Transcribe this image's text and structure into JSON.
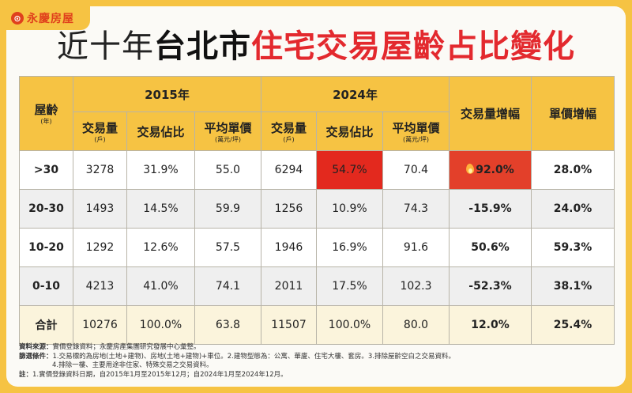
{
  "brand": {
    "logo_char": "⊙",
    "name": "永慶房屋"
  },
  "title": {
    "part1": "近十年",
    "part2": "台北市",
    "part3": "住宅交易屋齡占比變化"
  },
  "table": {
    "corner": {
      "label": "屋齡",
      "unit": "(年)"
    },
    "year_2015": "2015年",
    "year_2024": "2024年",
    "growth_volume": "交易量增幅",
    "growth_price": "單價增幅",
    "sub": {
      "volume": "交易量",
      "volume_unit": "(戶)",
      "share": "交易佔比",
      "price": "平均單價",
      "price_unit": "(萬元/坪)"
    },
    "rows": [
      {
        "age": ">30",
        "v15": "3278",
        "s15": "31.9%",
        "p15": "55.0",
        "v24": "6294",
        "s24": "54.7%",
        "p24": "70.4",
        "gv": "92.0%",
        "gp": "28.0%"
      },
      {
        "age": "20-30",
        "v15": "1493",
        "s15": "14.5%",
        "p15": "59.9",
        "v24": "1256",
        "s24": "10.9%",
        "p24": "74.3",
        "gv": "-15.9%",
        "gp": "24.0%"
      },
      {
        "age": "10-20",
        "v15": "1292",
        "s15": "12.6%",
        "p15": "57.5",
        "v24": "1946",
        "s24": "16.9%",
        "p24": "91.6",
        "gv": "50.6%",
        "gp": "59.3%"
      },
      {
        "age": "0-10",
        "v15": "4213",
        "s15": "41.0%",
        "p15": "74.1",
        "v24": "2011",
        "s24": "17.5%",
        "p24": "102.3",
        "gv": "-52.3%",
        "gp": "38.1%"
      },
      {
        "age": "合計",
        "v15": "10276",
        "s15": "100.0%",
        "p15": "63.8",
        "v24": "11507",
        "s24": "100.0%",
        "p24": "80.0",
        "gv": "12.0%",
        "gp": "25.4%"
      }
    ]
  },
  "notes": {
    "source_key": "資料來源：",
    "source": "實價登錄資料；永慶房產集團研究發展中心彙整。",
    "filter_key": "篩選條件：",
    "filter1": "1.交易標的為房地(土地+建物)、房地(土地+建物)+車位。2.建物型態為：公寓、華廈、住宅大樓、套房。3.排除屋齡空白之交易資料。",
    "filter2": "4.排除一樓、主要用途非住家、特殊交易之交易資料。",
    "note_key": "註：",
    "note": "1.實價登錄資料日期，自2015年1月至2015年12月；自2024年1月至2024年12月。"
  }
}
